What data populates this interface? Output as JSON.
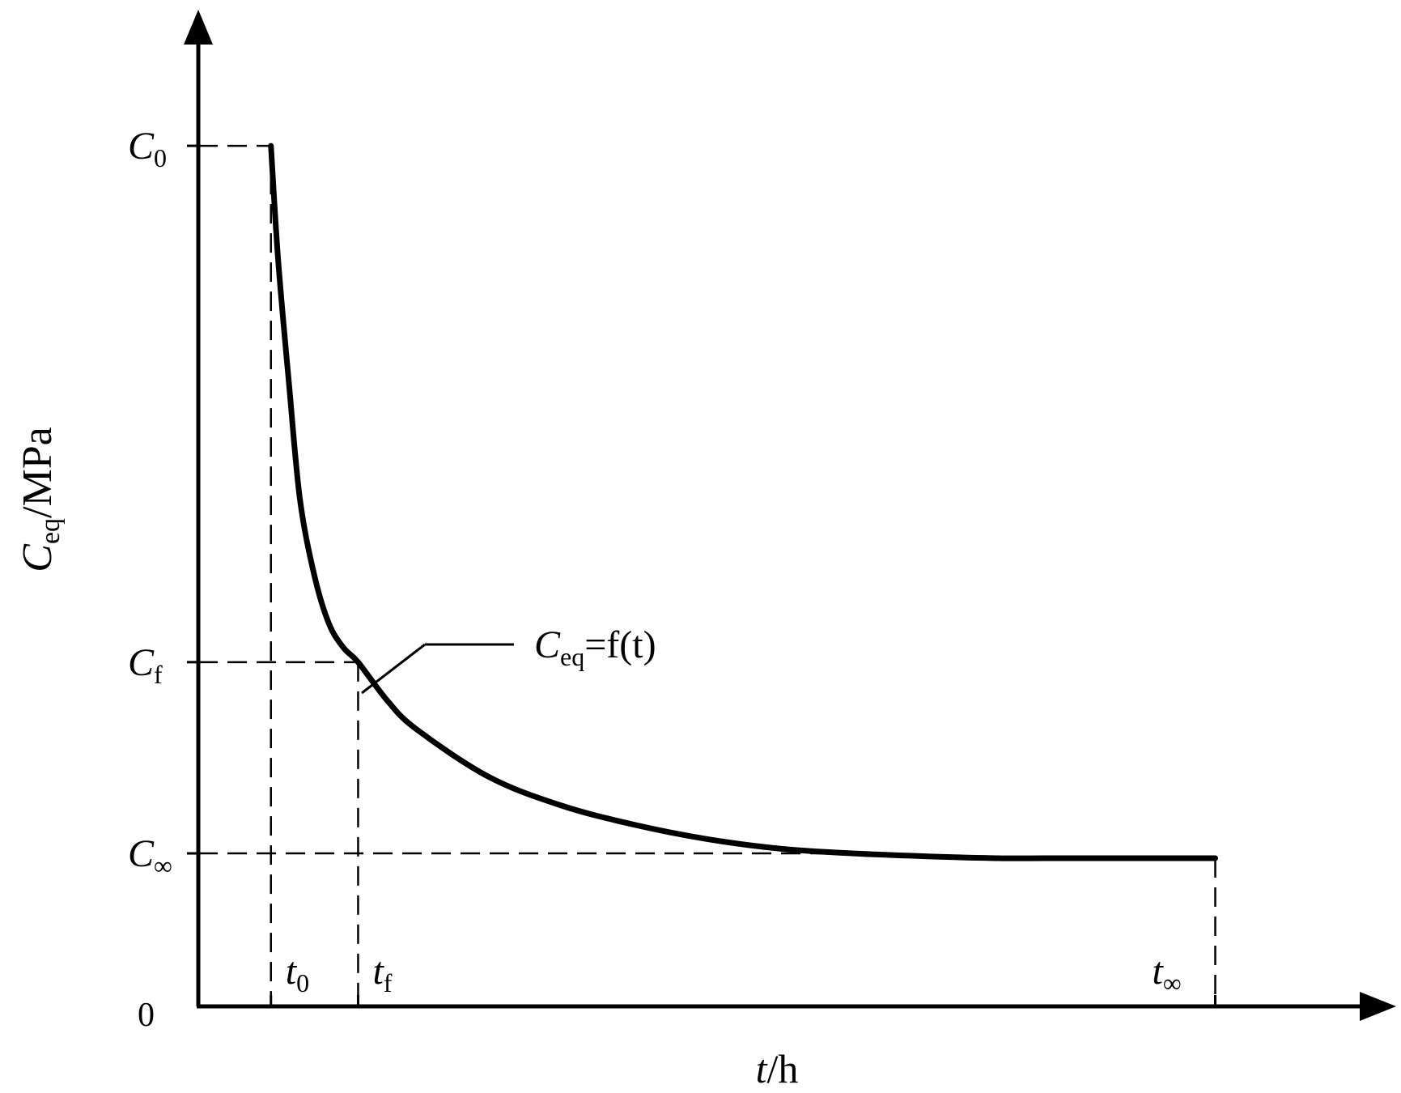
{
  "chart_data": {
    "type": "line",
    "xlabel": {
      "var": "t",
      "unit": "/h"
    },
    "ylabel": {
      "var": "C",
      "sub": "eq",
      "unit": "/MPa"
    },
    "origin_label": "0",
    "curve_label": {
      "var": "C",
      "sub": "eq",
      "rhs": "=f(t)"
    },
    "y_ticks": [
      {
        "key": "C0",
        "var": "C",
        "sub": "0"
      },
      {
        "key": "Cf",
        "var": "C",
        "sub": "f"
      },
      {
        "key": "Cinf",
        "var": "C",
        "sub": "∞"
      }
    ],
    "x_ticks": [
      {
        "key": "t0",
        "var": "t",
        "sub": "0"
      },
      {
        "key": "tf",
        "var": "t",
        "sub": "f"
      },
      {
        "key": "tinf",
        "var": "t",
        "sub": "∞"
      }
    ],
    "xlim": [
      0,
      16
    ],
    "ylim": [
      0,
      10
    ],
    "markers": {
      "t0": 1.0,
      "tf": 2.2,
      "tinf": 14.0,
      "C0": 9.0,
      "Cf": 3.6,
      "Cinf": 1.6
    },
    "series": [
      {
        "x": [
          1.0,
          1.1,
          1.25,
          1.4,
          1.6,
          1.8,
          2.0,
          2.2,
          2.6,
          3.0,
          4.0,
          5.0,
          6.0,
          7.0,
          8.0,
          9.0,
          10.0,
          11.0,
          12.0,
          13.0,
          14.0
        ],
        "y": [
          9.0,
          7.8,
          6.5,
          5.3,
          4.5,
          4.0,
          3.75,
          3.6,
          3.2,
          2.9,
          2.4,
          2.1,
          1.9,
          1.75,
          1.65,
          1.6,
          1.57,
          1.55,
          1.55,
          1.55,
          1.55
        ]
      }
    ],
    "grid": false,
    "legend": "none"
  }
}
